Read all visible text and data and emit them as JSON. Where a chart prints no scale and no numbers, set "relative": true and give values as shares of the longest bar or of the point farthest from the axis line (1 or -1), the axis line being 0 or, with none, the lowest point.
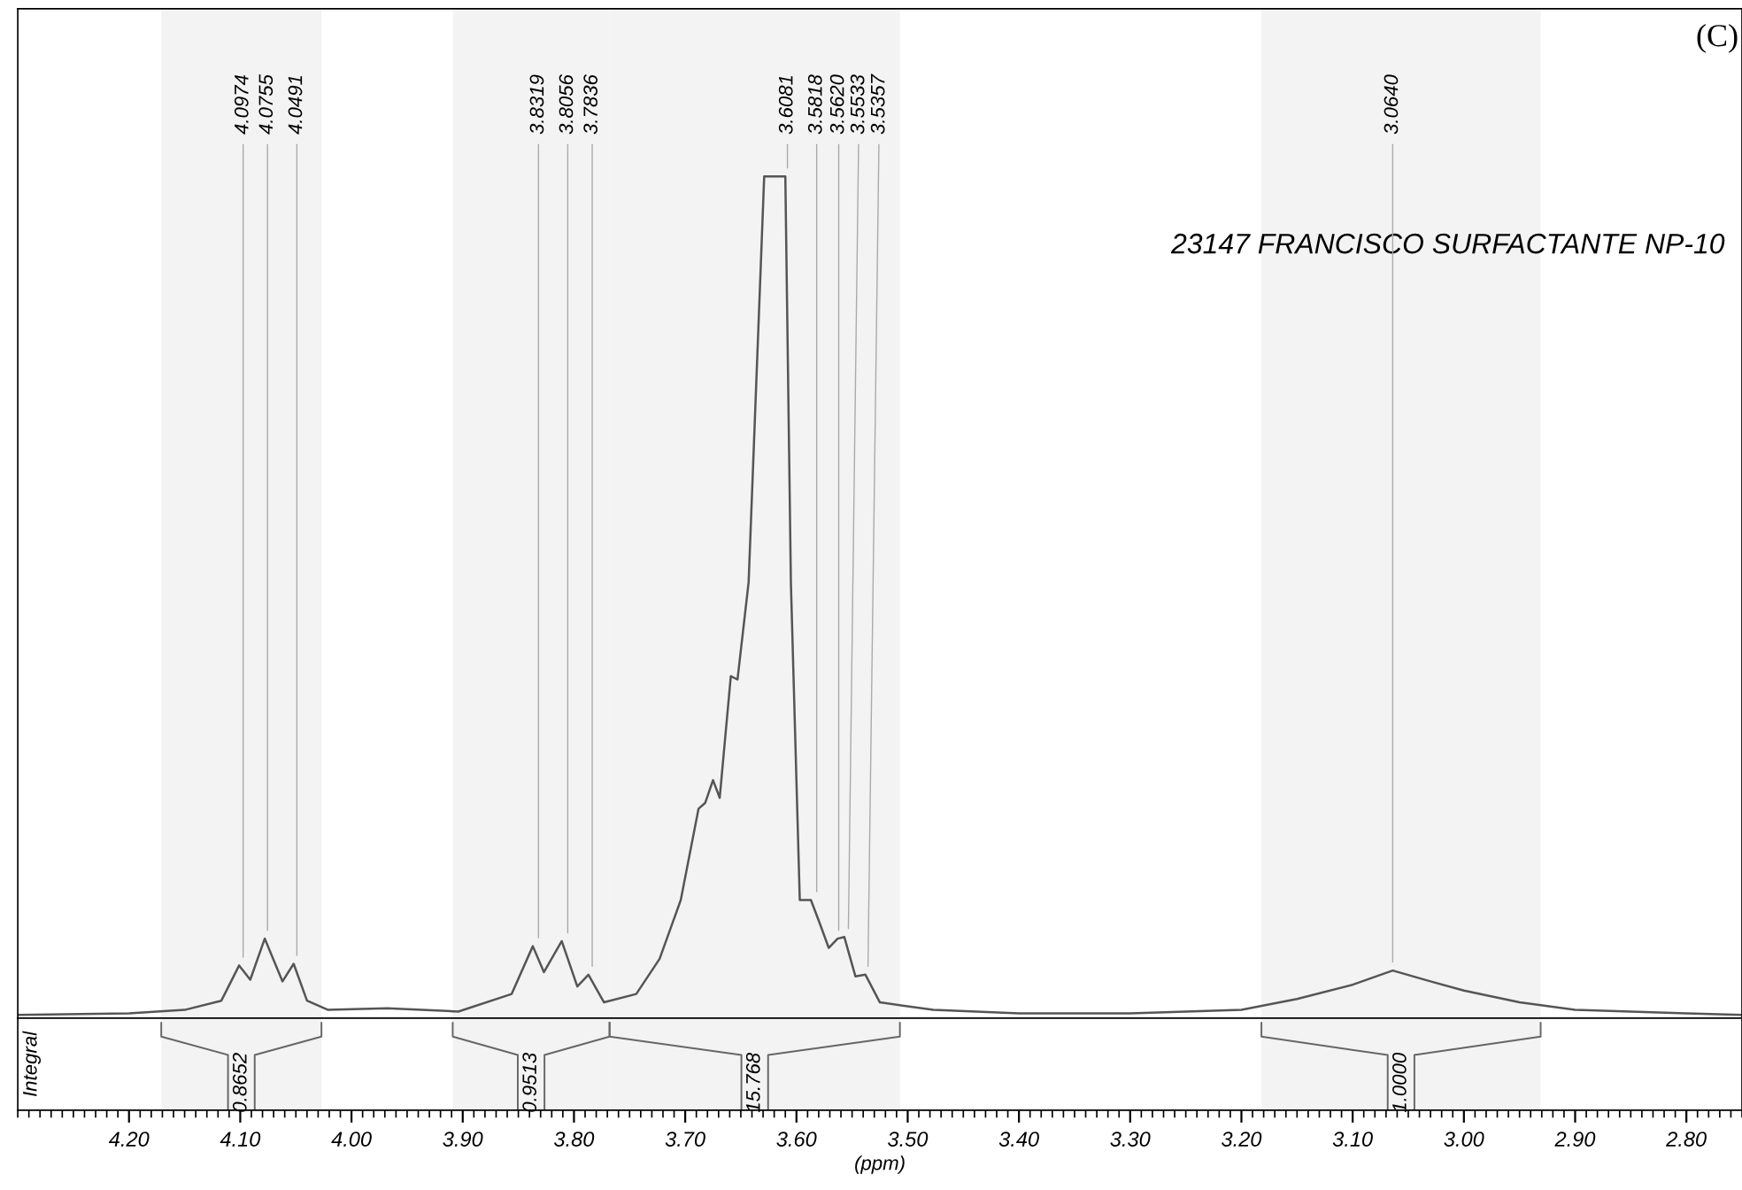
{
  "chart_data": {
    "type": "line",
    "relative": true,
    "title": "23147 FRANCISCO SURFACTANTE NP-10",
    "xlabel": "(ppm)",
    "color": "#555555",
    "x": [
      4.3,
      4.2,
      4.15,
      4.117,
      4.101,
      4.091,
      4.078,
      4.062,
      4.052,
      4.04,
      4.021,
      3.968,
      3.904,
      3.856,
      3.837,
      3.827,
      3.811,
      3.797,
      3.787,
      3.773,
      3.744,
      3.723,
      3.704,
      3.688,
      3.682,
      3.675,
      3.669,
      3.659,
      3.653,
      3.643,
      3.629,
      3.61,
      3.605,
      3.597,
      3.587,
      3.579,
      3.571,
      3.563,
      3.557,
      3.547,
      3.538,
      3.525,
      3.477,
      3.4,
      3.3,
      3.25,
      3.2,
      3.15,
      3.1,
      3.064,
      3.03,
      3.0,
      2.95,
      2.9,
      2.8,
      2.75
    ],
    "values": [
      0,
      0.002,
      0.006,
      0.017,
      0.059,
      0.042,
      0.091,
      0.04,
      0.061,
      0.017,
      0.006,
      0.008,
      0.004,
      0.025,
      0.082,
      0.051,
      0.088,
      0.034,
      0.048,
      0.015,
      0.025,
      0.067,
      0.137,
      0.246,
      0.253,
      0.28,
      0.259,
      0.404,
      0.4,
      0.516,
      1,
      1,
      0.516,
      0.137,
      0.137,
      0.109,
      0.08,
      0.091,
      0.093,
      0.046,
      0.048,
      0.015,
      0.006,
      0.002,
      0.002,
      0.004,
      0.006,
      0.019,
      0.036,
      0.053,
      0.04,
      0.029,
      0.015,
      0.006,
      0.002,
      0
    ],
    "xlim": [
      4.3,
      2.75
    ],
    "xticks": [
      {
        "value": 4.2,
        "label": "4.20"
      },
      {
        "value": 4.1,
        "label": "4.10"
      },
      {
        "value": 4.0,
        "label": "4.00"
      },
      {
        "value": 3.9,
        "label": "3.90"
      },
      {
        "value": 3.8,
        "label": "3.80"
      },
      {
        "value": 3.7,
        "label": "3.70"
      },
      {
        "value": 3.6,
        "label": "3.60"
      },
      {
        "value": 3.5,
        "label": "3.50"
      },
      {
        "value": 3.4,
        "label": "3.40"
      },
      {
        "value": 3.3,
        "label": "3.30"
      },
      {
        "value": 3.2,
        "label": "3.20"
      },
      {
        "value": 3.1,
        "label": "3.10"
      },
      {
        "value": 3.0,
        "label": "3.00"
      },
      {
        "value": 2.9,
        "label": "2.90"
      },
      {
        "value": 2.8,
        "label": "2.80"
      }
    ],
    "grid": false,
    "bands": [
      {
        "axis": "x",
        "from": 4.171,
        "to": 4.027,
        "label": "0.8652",
        "color": "#f3f3f3"
      },
      {
        "axis": "x",
        "from": 3.909,
        "to": 3.768,
        "label": "0.9513",
        "color": "#f3f3f3"
      },
      {
        "axis": "x",
        "from": 3.768,
        "to": 3.507,
        "label": "15.768",
        "color": "#f3f3f3"
      },
      {
        "axis": "x",
        "from": 3.182,
        "to": 2.931,
        "label": "1.0000",
        "color": "#f3f3f3"
      }
    ],
    "annotations": [
      "(C)",
      "Integral",
      {
        "text": "4.0974",
        "x": 4.0974,
        "y": 0.059
      },
      {
        "text": "4.0755",
        "x": 4.0755,
        "y": 0.091
      },
      {
        "text": "4.0491",
        "x": 4.0491,
        "y": 0.061
      },
      {
        "text": "3.8319",
        "x": 3.8319,
        "y": 0.082
      },
      {
        "text": "3.8056",
        "x": 3.8056,
        "y": 0.088
      },
      {
        "text": "3.7836",
        "x": 3.7836,
        "y": 0.048
      },
      {
        "text": "3.6081",
        "x": 3.6081,
        "y": 1
      },
      {
        "text": "3.5818",
        "x": 3.5818,
        "y": 0.137
      },
      {
        "text": "3.5620",
        "x": 3.562,
        "y": 0.091
      },
      {
        "text": "3.5533",
        "x": 3.5533,
        "y": 0.093
      },
      {
        "text": "3.5357",
        "x": 3.5357,
        "y": 0.048
      },
      {
        "text": "3.0640",
        "x": 3.064,
        "y": 0.053
      }
    ]
  }
}
